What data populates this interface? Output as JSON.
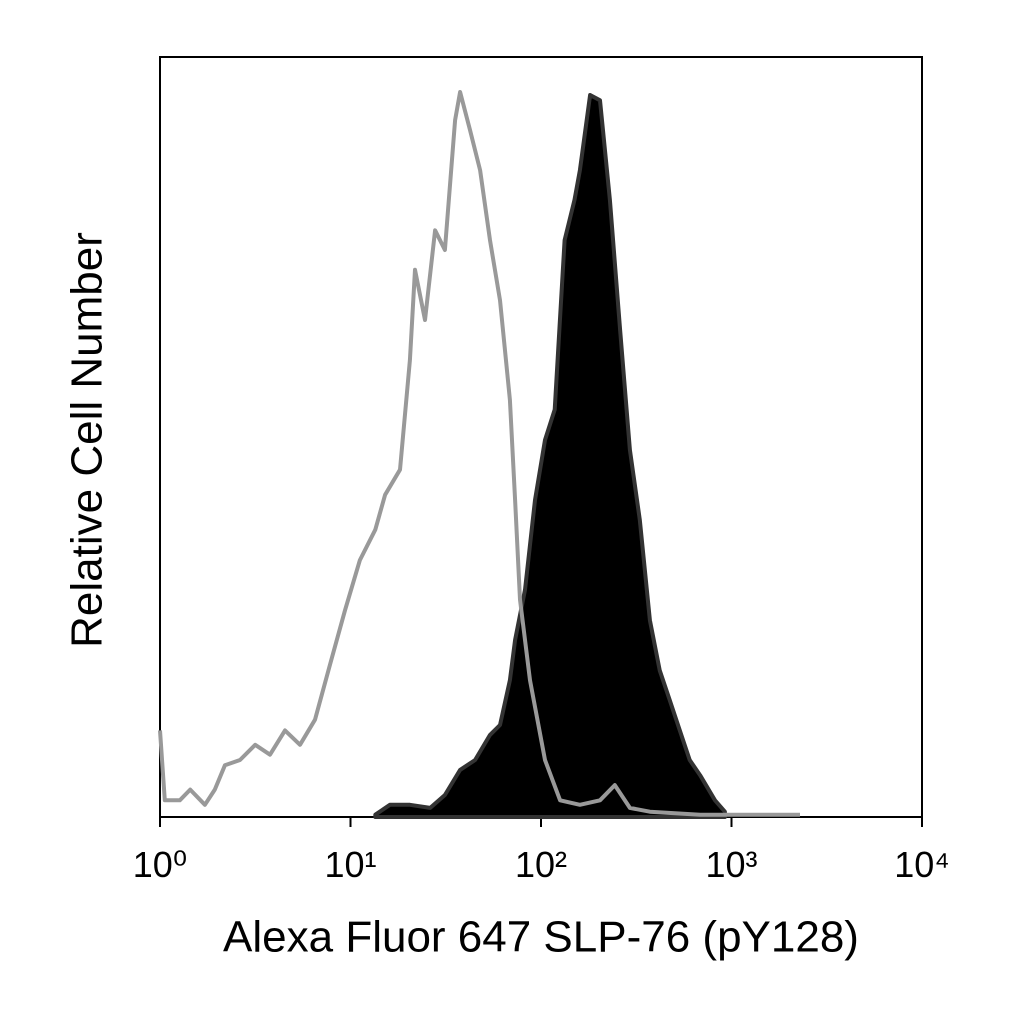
{
  "chart_data": {
    "type": "line",
    "x_label": "Alexa Fluor 647 SLP-76 (pY128)",
    "y_label": "Relative Cell Number",
    "xscale": "log",
    "xlim": [
      1,
      10000
    ],
    "ylim": [
      0,
      100
    ],
    "xticks": [
      {
        "value": 1,
        "label": "10⁰"
      },
      {
        "value": 10,
        "label": "10¹"
      },
      {
        "value": 100,
        "label": "10²"
      },
      {
        "value": 1000,
        "label": "10³"
      },
      {
        "value": 10000,
        "label": "10⁴"
      }
    ],
    "series": [
      {
        "color": "#333333",
        "fill": "#000000",
        "x": [
          13.5,
          16.1,
          20.5,
          26.2,
          31.3,
          37.6,
          45.1,
          54.0,
          60.9,
          68.7,
          73.1,
          82.4,
          93.0,
          105,
          118,
          133,
          150,
          160,
          181,
          204,
          230,
          260,
          293,
          330,
          373,
          420,
          474,
          535,
          603,
          684,
          819,
          923
        ],
        "values": [
          0.3,
          1.6,
          1.6,
          1.2,
          2.9,
          6.2,
          7.5,
          10.8,
          12.1,
          18.0,
          23.3,
          29.9,
          41.7,
          49.6,
          53.6,
          75.9,
          81.2,
          85.1,
          95.0,
          94.3,
          81.2,
          64.1,
          48.3,
          39.1,
          25.9,
          19.3,
          15.4,
          11.4,
          7.5,
          5.5,
          2.2,
          0.7
        ]
      },
      {
        "color": "#999999",
        "x": [
          1.0,
          1.06,
          1.27,
          1.44,
          1.72,
          1.94,
          2.19,
          2.63,
          3.16,
          3.78,
          4.53,
          5.43,
          6.51,
          7.8,
          9.36,
          11.2,
          13.5,
          15.2,
          18.2,
          20.5,
          21.8,
          24.6,
          27.8,
          31.3,
          35.4,
          37.6,
          42.4,
          47.9,
          54.0,
          60.9,
          68.7,
          73.1,
          77.6,
          87.6,
          105,
          126,
          160,
          204,
          244,
          293,
          373,
          684,
          2290
        ],
        "values": [
          11.4,
          2.2,
          2.2,
          3.6,
          1.6,
          3.6,
          6.8,
          7.5,
          9.5,
          8.2,
          11.4,
          9.5,
          12.8,
          20.0,
          27.2,
          33.8,
          37.8,
          42.4,
          45.7,
          60.1,
          72.0,
          65.4,
          77.2,
          74.6,
          91.7,
          95.4,
          90.4,
          85.1,
          75.9,
          68.0,
          54.9,
          41.7,
          28.6,
          18.0,
          7.5,
          2.2,
          1.6,
          2.2,
          4.2,
          1.2,
          0.7,
          0.3,
          0.3
        ]
      }
    ]
  }
}
